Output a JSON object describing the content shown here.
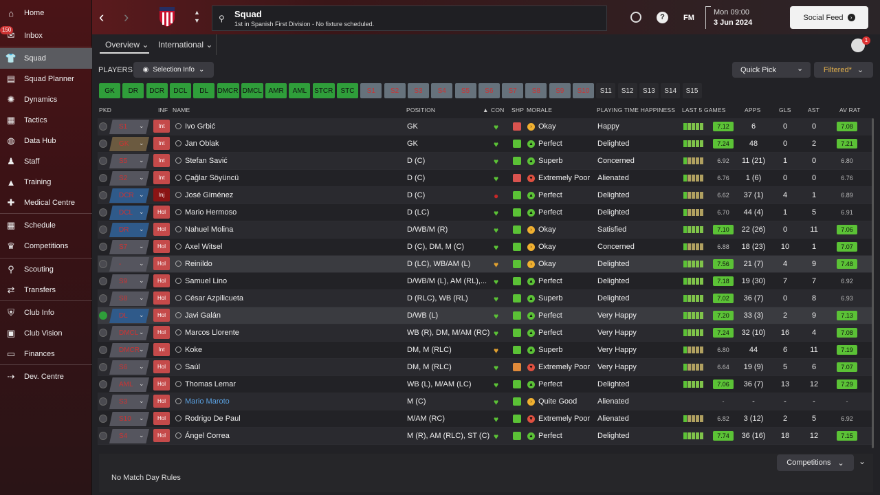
{
  "sidebar": {
    "items": [
      {
        "label": "Home",
        "icon": "home-icon"
      },
      {
        "label": "Inbox",
        "icon": "inbox-icon",
        "badge": "150"
      },
      {
        "label": "Squad",
        "icon": "shirt-icon"
      },
      {
        "label": "Squad Planner",
        "icon": "clipboard-icon"
      },
      {
        "label": "Dynamics",
        "icon": "dynamics-icon"
      },
      {
        "label": "Tactics",
        "icon": "tactics-board-icon"
      },
      {
        "label": "Data Hub",
        "icon": "data-hub-icon"
      },
      {
        "label": "Staff",
        "icon": "staff-icon"
      },
      {
        "label": "Training",
        "icon": "training-cone-icon"
      },
      {
        "label": "Medical Centre",
        "icon": "medical-kit-icon"
      },
      {
        "label": "Schedule",
        "icon": "calendar-icon"
      },
      {
        "label": "Competitions",
        "icon": "trophy-icon"
      },
      {
        "label": "Scouting",
        "icon": "magnifier-icon"
      },
      {
        "label": "Transfers",
        "icon": "transfer-arrows-icon"
      },
      {
        "label": "Club Info",
        "icon": "shield-icon"
      },
      {
        "label": "Club Vision",
        "icon": "briefcase-icon"
      },
      {
        "label": "Finances",
        "icon": "money-icon"
      },
      {
        "label": "Dev. Centre",
        "icon": "dev-centre-icon"
      }
    ]
  },
  "header": {
    "title": "Squad",
    "subtitle": "1st in Spanish First Division - No fixture scheduled.",
    "date_line1": "Mon 09:00",
    "date_line2": "3 Jun 2024",
    "fm_label": "FM",
    "social_feed": "Social Feed",
    "notify_count": "1"
  },
  "tabs": {
    "overview": "Overview",
    "international": "International"
  },
  "players_label": "PLAYERS",
  "selection_info": "Selection Info",
  "quick_pick": "Quick Pick",
  "filtered": "Filtered*",
  "chips": [
    {
      "label": "GK",
      "state": "on"
    },
    {
      "label": "DR",
      "state": "on"
    },
    {
      "label": "DCR",
      "state": "on"
    },
    {
      "label": "DCL",
      "state": "on"
    },
    {
      "label": "DL",
      "state": "on"
    },
    {
      "label": "DMCR",
      "state": "on"
    },
    {
      "label": "DMCL",
      "state": "on"
    },
    {
      "label": "AMR",
      "state": "on"
    },
    {
      "label": "AML",
      "state": "on"
    },
    {
      "label": "STCR",
      "state": "on"
    },
    {
      "label": "STC",
      "state": "on"
    },
    {
      "label": "S1",
      "state": "off"
    },
    {
      "label": "S2",
      "state": "off"
    },
    {
      "label": "S3",
      "state": "off"
    },
    {
      "label": "S4",
      "state": "off"
    },
    {
      "label": "S5",
      "state": "off"
    },
    {
      "label": "S6",
      "state": "off"
    },
    {
      "label": "S7",
      "state": "off"
    },
    {
      "label": "S8",
      "state": "off"
    },
    {
      "label": "S9",
      "state": "off"
    },
    {
      "label": "S10",
      "state": "off"
    },
    {
      "label": "S11",
      "state": "slot"
    },
    {
      "label": "S12",
      "state": "slot"
    },
    {
      "label": "S13",
      "state": "slot"
    },
    {
      "label": "S14",
      "state": "slot"
    },
    {
      "label": "S15",
      "state": "slot"
    }
  ],
  "columns": {
    "pkd": "PKD",
    "inf": "INF",
    "name": "NAME",
    "position": "POSITION",
    "con": "CON",
    "shp": "SHP",
    "morale": "MORALE",
    "pth": "PLAYING TIME HAPPINESS",
    "last5": "LAST 5 GAMES",
    "apps": "APPS",
    "gls": "GLS",
    "ast": "AST",
    "avrat": "AV RAT"
  },
  "players": [
    {
      "pkd": "S1",
      "inf": "Int",
      "name": "Ivo Grbić",
      "position": "GK",
      "morale": "Okay",
      "pth": "Happy",
      "rating": "7.12",
      "apps": "6",
      "gls": "0",
      "ast": "0",
      "avrat": "7.08",
      "chip": "gray",
      "con": "good",
      "shp": "red",
      "mor": "okay",
      "rt": "g",
      "av": "g"
    },
    {
      "pkd": "GK",
      "inf": "Int",
      "name": "Jan Oblak",
      "position": "GK",
      "morale": "Perfect",
      "pth": "Delighted",
      "rating": "7.24",
      "apps": "48",
      "gls": "0",
      "ast": "2",
      "avrat": "7.21",
      "chip": "brown",
      "con": "good",
      "shp": "green",
      "mor": "perfect",
      "rt": "g",
      "av": "g"
    },
    {
      "pkd": "S5",
      "inf": "Int",
      "name": "Stefan Savić",
      "position": "D (C)",
      "morale": "Superb",
      "pth": "Concerned",
      "rating": "6.92",
      "apps": "11 (21)",
      "gls": "1",
      "ast": "0",
      "avrat": "6.80",
      "chip": "gray",
      "con": "good",
      "shp": "green",
      "mor": "superb",
      "rt": "n",
      "av": "n"
    },
    {
      "pkd": "S2",
      "inf": "Int",
      "name": "Çağlar Söyüncü",
      "position": "D (C)",
      "morale": "Extremely Poor",
      "pth": "Alienated",
      "rating": "6.76",
      "apps": "1 (6)",
      "gls": "0",
      "ast": "0",
      "avrat": "6.76",
      "chip": "gray",
      "con": "good",
      "shp": "red",
      "mor": "poor",
      "rt": "n",
      "av": "n"
    },
    {
      "pkd": "DCR",
      "inf": "Inj",
      "name": "José Giménez",
      "position": "D (C)",
      "morale": "Perfect",
      "pth": "Delighted",
      "rating": "6.62",
      "apps": "37 (1)",
      "gls": "4",
      "ast": "1",
      "avrat": "6.89",
      "chip": "blue",
      "con": "injured",
      "shp": "green",
      "mor": "perfect",
      "rt": "n",
      "av": "n"
    },
    {
      "pkd": "DCL",
      "inf": "Hol",
      "name": "Mario Hermoso",
      "position": "D (LC)",
      "morale": "Perfect",
      "pth": "Delighted",
      "rating": "6.70",
      "apps": "44 (4)",
      "gls": "1",
      "ast": "5",
      "avrat": "6.91",
      "chip": "blue",
      "con": "good",
      "shp": "green",
      "mor": "perfect",
      "rt": "n",
      "av": "n"
    },
    {
      "pkd": "DR",
      "inf": "Hol",
      "name": "Nahuel Molina",
      "position": "D/WB/M (R)",
      "morale": "Okay",
      "pth": "Satisfied",
      "rating": "7.10",
      "apps": "22 (26)",
      "gls": "0",
      "ast": "11",
      "avrat": "7.06",
      "chip": "blue",
      "con": "good",
      "shp": "green",
      "mor": "okay",
      "rt": "g",
      "av": "g"
    },
    {
      "pkd": "S7",
      "inf": "Hol",
      "name": "Axel Witsel",
      "position": "D (C), DM, M (C)",
      "morale": "Okay",
      "pth": "Concerned",
      "rating": "6.88",
      "apps": "18 (23)",
      "gls": "10",
      "ast": "1",
      "avrat": "7.07",
      "chip": "gray",
      "con": "good",
      "shp": "green",
      "mor": "okay",
      "rt": "n",
      "av": "g"
    },
    {
      "pkd": "-",
      "inf": "Hol",
      "name": "Reinildo",
      "position": "D (LC), WB/AM (L)",
      "morale": "Okay",
      "pth": "Delighted",
      "rating": "7.56",
      "apps": "21 (7)",
      "gls": "4",
      "ast": "9",
      "avrat": "7.48",
      "chip": "gray",
      "con": "mid",
      "shp": "green",
      "mor": "okay",
      "rt": "g",
      "av": "g"
    },
    {
      "pkd": "S9",
      "inf": "Hol",
      "name": "Samuel Lino",
      "position": "D/WB/M (L), AM (RL),...",
      "morale": "Perfect",
      "pth": "Delighted",
      "rating": "7.18",
      "apps": "19 (30)",
      "gls": "7",
      "ast": "7",
      "avrat": "6.92",
      "chip": "gray",
      "con": "good",
      "shp": "green",
      "mor": "perfect",
      "rt": "g",
      "av": "n"
    },
    {
      "pkd": "S8",
      "inf": "Hol",
      "name": "César Azpilicueta",
      "position": "D (RLC), WB (RL)",
      "morale": "Superb",
      "pth": "Delighted",
      "rating": "7.02",
      "apps": "36 (7)",
      "gls": "0",
      "ast": "8",
      "avrat": "6.93",
      "chip": "gray",
      "con": "good",
      "shp": "green",
      "mor": "superb",
      "rt": "g",
      "av": "n"
    },
    {
      "pkd": "DL",
      "inf": "Hol",
      "name": "Javi Galán",
      "position": "D/WB (L)",
      "morale": "Perfect",
      "pth": "Very Happy",
      "rating": "7.20",
      "apps": "33 (3)",
      "gls": "2",
      "ast": "9",
      "avrat": "7.13",
      "chip": "blue",
      "con": "good",
      "shp": "green",
      "mor": "perfect",
      "rt": "g",
      "av": "g"
    },
    {
      "pkd": "DMCL",
      "inf": "Hol",
      "name": "Marcos Llorente",
      "position": "WB (R), DM, M/AM (RC)",
      "morale": "Perfect",
      "pth": "Very Happy",
      "rating": "7.24",
      "apps": "32 (10)",
      "gls": "16",
      "ast": "4",
      "avrat": "7.08",
      "chip": "gray",
      "con": "good",
      "shp": "green",
      "mor": "perfect",
      "rt": "g",
      "av": "g"
    },
    {
      "pkd": "DMCR",
      "inf": "Int",
      "name": "Koke",
      "position": "DM, M (RLC)",
      "morale": "Superb",
      "pth": "Very Happy",
      "rating": "6.80",
      "apps": "44",
      "gls": "6",
      "ast": "11",
      "avrat": "7.19",
      "chip": "gray",
      "con": "mid",
      "shp": "green",
      "mor": "superb",
      "rt": "n",
      "av": "g"
    },
    {
      "pkd": "S6",
      "inf": "Hol",
      "name": "Saúl",
      "position": "DM, M (RLC)",
      "morale": "Extremely Poor",
      "pth": "Very Happy",
      "rating": "6.64",
      "apps": "19 (9)",
      "gls": "5",
      "ast": "6",
      "avrat": "7.07",
      "chip": "gray",
      "con": "good",
      "shp": "orange",
      "mor": "poor",
      "rt": "n",
      "av": "g"
    },
    {
      "pkd": "AML",
      "inf": "Hol",
      "name": "Thomas Lemar",
      "position": "WB (L), M/AM (LC)",
      "morale": "Perfect",
      "pth": "Delighted",
      "rating": "7.06",
      "apps": "36 (7)",
      "gls": "13",
      "ast": "12",
      "avrat": "7.29",
      "chip": "gray",
      "con": "good",
      "shp": "green",
      "mor": "perfect",
      "rt": "g",
      "av": "g"
    },
    {
      "pkd": "S3",
      "inf": "Hol",
      "name": "Mario Maroto",
      "position": "M (C)",
      "morale": "Quite Good",
      "pth": "Alienated",
      "rating": "-",
      "apps": "-",
      "gls": "-",
      "ast": "-",
      "avrat": "-",
      "chip": "gray",
      "con": "good",
      "shp": "green",
      "mor": "okay",
      "rt": "n",
      "av": "n",
      "link": true
    },
    {
      "pkd": "S10",
      "inf": "Hol",
      "name": "Rodrigo De Paul",
      "position": "M/AM (RC)",
      "morale": "Extremely Poor",
      "pth": "Alienated",
      "rating": "6.82",
      "apps": "3 (12)",
      "gls": "2",
      "ast": "5",
      "avrat": "6.92",
      "chip": "gray",
      "con": "good",
      "shp": "green",
      "mor": "poor",
      "rt": "n",
      "av": "n"
    },
    {
      "pkd": "S4",
      "inf": "Hol",
      "name": "Ángel Correa",
      "position": "M (R), AM (RLC), ST (C)",
      "morale": "Perfect",
      "pth": "Delighted",
      "rating": "7.74",
      "apps": "36 (16)",
      "gls": "18",
      "ast": "12",
      "avrat": "7.15",
      "chip": "gray",
      "con": "good",
      "shp": "green",
      "mor": "perfect",
      "rt": "g",
      "av": "g"
    }
  ],
  "footer": {
    "rules": "No Match Day Rules",
    "competitions": "Competitions"
  },
  "colors": {
    "accent_green": "#5bc236",
    "chip_green": "#2f9e3a",
    "red": "#c54a4a",
    "brand": "#5a1a1d"
  }
}
